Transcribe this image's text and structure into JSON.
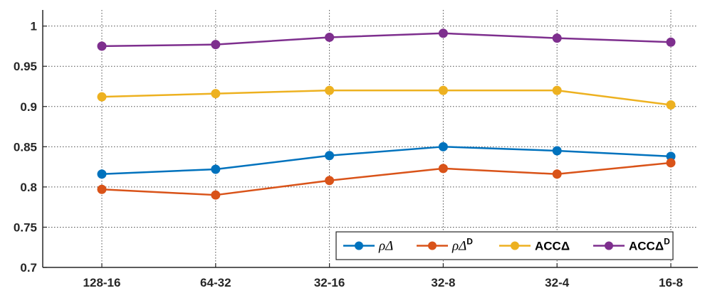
{
  "chart_data": {
    "type": "line",
    "categories": [
      "128-16",
      "64-32",
      "32-16",
      "32-8",
      "32-4",
      "16-8"
    ],
    "ylim": [
      0.7,
      1.02
    ],
    "yticks": [
      0.7,
      0.75,
      0.8,
      0.85,
      0.9,
      0.95,
      1
    ],
    "ytick_labels": [
      "0.7",
      "0.75",
      "0.8",
      "0.85",
      "0.9",
      "0.95",
      "1"
    ],
    "grid": true,
    "legend_placement": "bottom-right",
    "series": [
      {
        "name": "ρΔ",
        "base": "ρΔ",
        "sup": "",
        "style": "italic",
        "color": "#0072BD",
        "values": [
          0.816,
          0.822,
          0.839,
          0.85,
          0.845,
          0.838
        ]
      },
      {
        "name": "ρΔD",
        "base": "ρΔ",
        "sup": "D",
        "style": "italic",
        "color": "#D95319",
        "values": [
          0.797,
          0.79,
          0.808,
          0.823,
          0.816,
          0.83
        ]
      },
      {
        "name": "ACCΔ",
        "base": "ACCΔ",
        "sup": "",
        "style": "bold",
        "color": "#EDB120",
        "values": [
          0.912,
          0.916,
          0.92,
          0.92,
          0.92,
          0.902
        ]
      },
      {
        "name": "ACCΔD",
        "base": "ACCΔ",
        "sup": "D",
        "style": "bold",
        "color": "#7E2F8E",
        "values": [
          0.975,
          0.977,
          0.986,
          0.991,
          0.985,
          0.98
        ]
      }
    ]
  }
}
